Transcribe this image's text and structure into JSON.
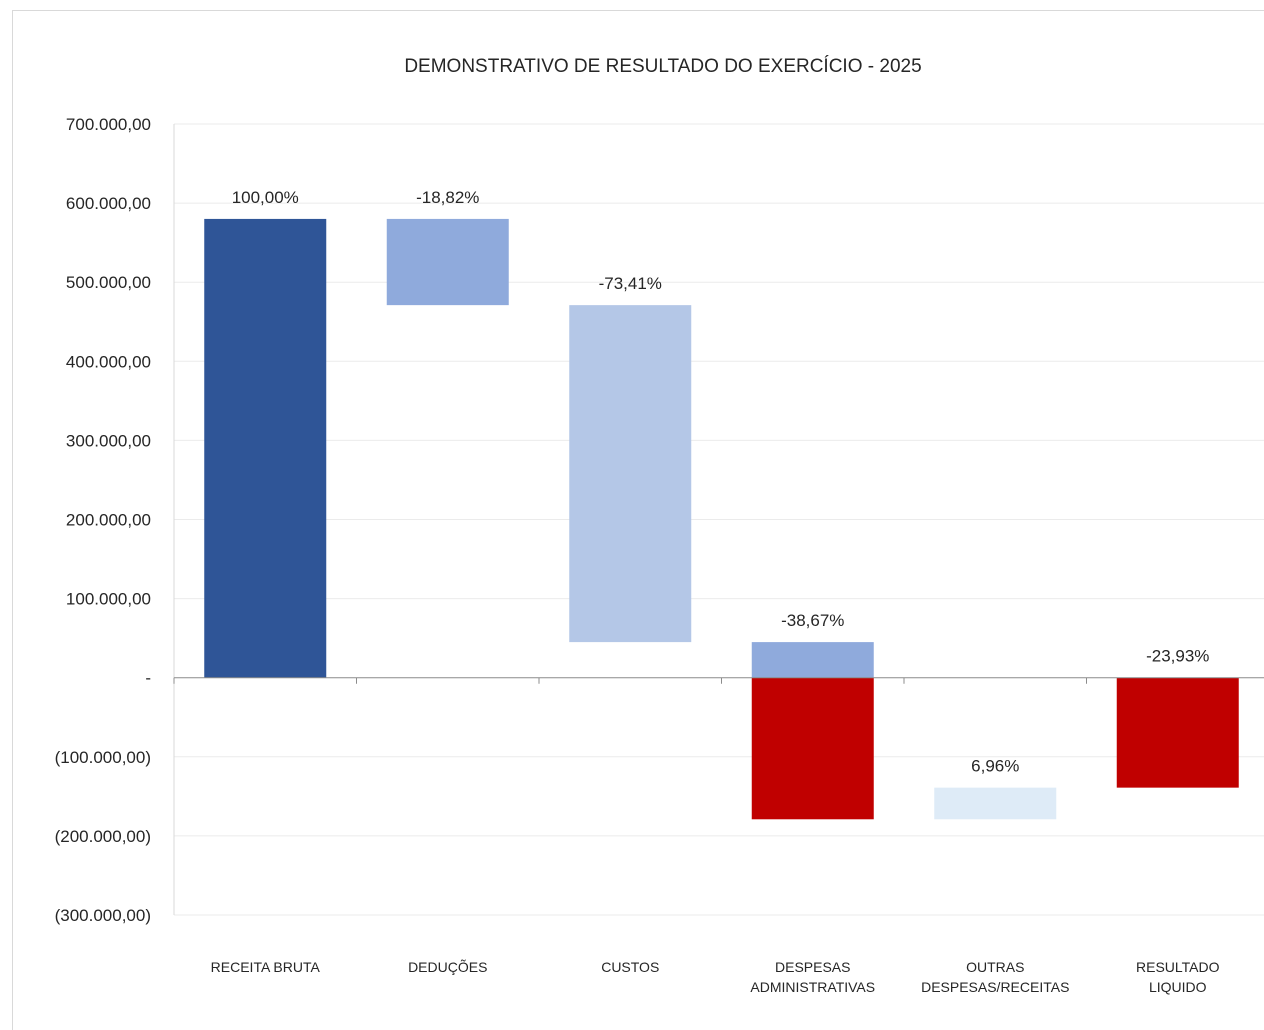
{
  "chart_data": {
    "type": "bar",
    "subtype": "waterfall",
    "title": "DEMONSTRATIVO DE RESULTADO DO EXERCÍCIO - 2025",
    "xlabel": "",
    "ylabel": "",
    "ylim": [
      -300000,
      700000
    ],
    "yticks": [
      700000,
      600000,
      500000,
      400000,
      300000,
      200000,
      100000,
      0,
      -100000,
      -200000,
      -300000
    ],
    "ytick_labels": [
      "700.000,00",
      "600.000,00",
      "500.000,00",
      "400.000,00",
      "300.000,00",
      "200.000,00",
      "100.000,00",
      "-",
      "(100.000,00)",
      "(200.000,00)",
      "(300.000,00)"
    ],
    "grid": true,
    "legend": "none",
    "categories": [
      {
        "label": [
          "RECEITA BRUTA"
        ],
        "value_label": "100,00%"
      },
      {
        "label": [
          "DEDUÇÕES"
        ],
        "value_label": "-18,82%"
      },
      {
        "label": [
          "CUSTOS"
        ],
        "value_label": "-73,41%"
      },
      {
        "label": [
          "DESPESAS",
          "ADMINISTRATIVAS"
        ],
        "value_label": "-38,67%"
      },
      {
        "label": [
          "OUTRAS",
          "DESPESAS/RECEITAS"
        ],
        "value_label": "6,96%"
      },
      {
        "label": [
          "RESULTADO",
          "LIQUIDO"
        ],
        "value_label": "-23,93%"
      }
    ],
    "bars": [
      {
        "category": 0,
        "from": 0,
        "to": 580000,
        "color": "#2F5597"
      },
      {
        "category": 1,
        "from": 580000,
        "to": 471000,
        "color": "#8FAADC"
      },
      {
        "category": 2,
        "from": 471000,
        "to": 45000,
        "color": "#B4C7E7"
      },
      {
        "category": 3,
        "from": 45000,
        "to": 0,
        "color": "#8FAADC"
      },
      {
        "category": 3,
        "from": 0,
        "to": -179000,
        "color": "#C00000"
      },
      {
        "category": 4,
        "from": -179000,
        "to": -139000,
        "color": "#DEEBF7"
      },
      {
        "category": 5,
        "from": 0,
        "to": -139000,
        "color": "#C00000"
      }
    ],
    "label_anchor": [
      580000,
      580000,
      471000,
      45000,
      -139000,
      0
    ]
  }
}
